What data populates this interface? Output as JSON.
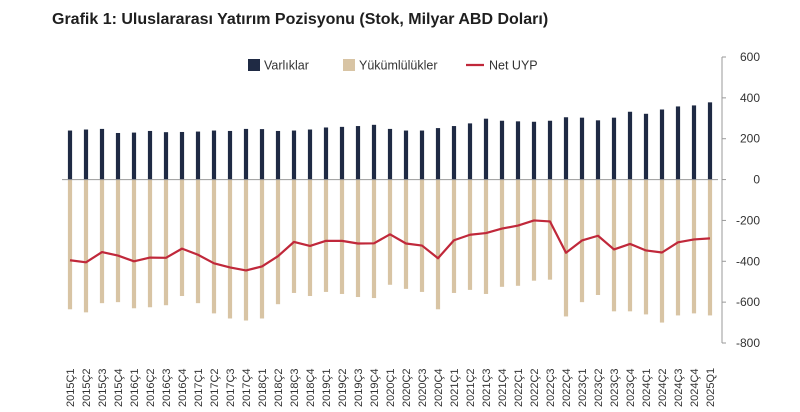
{
  "title": "Grafik 1: Uluslararası Yatırım Pozisyonu (Stok, Milyar ABD Doları)",
  "colors": {
    "assets": "#1f2a44",
    "liabilities": "#d8c4a4",
    "net": "#c0283a",
    "axis": "#999999"
  },
  "legend": {
    "placement": "top",
    "items": [
      {
        "label": "Varlıklar",
        "color": "#1f2a44",
        "shape": "square"
      },
      {
        "label": "Yükümlülükler",
        "color": "#d8c4a4",
        "shape": "square"
      },
      {
        "label": "Net UYP",
        "color": "#c0283a",
        "shape": "line"
      }
    ]
  },
  "chart_data": {
    "type": "bar",
    "title": "Grafik 1: Uluslararası Yatırım Pozisyonu (Stok, Milyar ABD Doları)",
    "ylim": [
      -800,
      600
    ],
    "yticks": [
      600,
      400,
      200,
      0,
      -200,
      -400,
      -600,
      -800
    ],
    "y_axis_side": "right",
    "grid": false,
    "categories": [
      "2015Ç1",
      "2015Ç2",
      "2015Ç3",
      "2015Ç4",
      "2016Ç1",
      "2016Ç2",
      "2016Ç3",
      "2016Ç4",
      "2017Ç1",
      "2017Ç2",
      "2017Ç3",
      "2017Ç4",
      "2018Ç1",
      "2018Ç2",
      "2018Ç3",
      "2018Ç4",
      "2019Ç1",
      "2019Ç2",
      "2019Ç3",
      "2019Ç4",
      "2020Ç1",
      "2020Ç2",
      "2020Ç3",
      "2020Ç4",
      "2021Ç1",
      "2021Ç2",
      "2021Ç3",
      "2021Ç4",
      "2022Ç1",
      "2022Ç2",
      "2022Ç3",
      "2022Ç4",
      "2023Ç1",
      "2023Ç2",
      "2023Ç3",
      "2023Ç4",
      "2024Ç1",
      "2024Ç2",
      "2024Ç3",
      "2024Ç4",
      "2025Q1"
    ],
    "series": [
      {
        "name": "Varlıklar",
        "type": "bar",
        "values": [
          240,
          245,
          248,
          228,
          230,
          238,
          232,
          233,
          235,
          240,
          238,
          248,
          247,
          238,
          240,
          245,
          255,
          258,
          262,
          268,
          248,
          240,
          240,
          252,
          262,
          275,
          298,
          288,
          285,
          283,
          288,
          305,
          303,
          290,
          303,
          332,
          322,
          343,
          358,
          363,
          378
        ]
      },
      {
        "name": "Yükümlülükler",
        "type": "bar",
        "values": [
          -635,
          -650,
          -605,
          -600,
          -630,
          -625,
          -615,
          -570,
          -605,
          -655,
          -680,
          -690,
          -680,
          -610,
          -555,
          -570,
          -550,
          -560,
          -575,
          -580,
          -515,
          -535,
          -550,
          -635,
          -555,
          -540,
          -560,
          -525,
          -520,
          -495,
          -490,
          -670,
          -600,
          -565,
          -645,
          -645,
          -660,
          -700,
          -665,
          -655,
          -665
        ]
      },
      {
        "name": "Net UYP",
        "type": "line",
        "values": [
          -395,
          -405,
          -355,
          -372,
          -400,
          -382,
          -383,
          -338,
          -368,
          -410,
          -430,
          -445,
          -425,
          -375,
          -305,
          -325,
          -300,
          -300,
          -313,
          -312,
          -268,
          -313,
          -323,
          -385,
          -297,
          -270,
          -262,
          -240,
          -225,
          -200,
          -205,
          -358,
          -298,
          -275,
          -342,
          -315,
          -347,
          -357,
          -307,
          -293,
          -288
        ]
      }
    ]
  }
}
